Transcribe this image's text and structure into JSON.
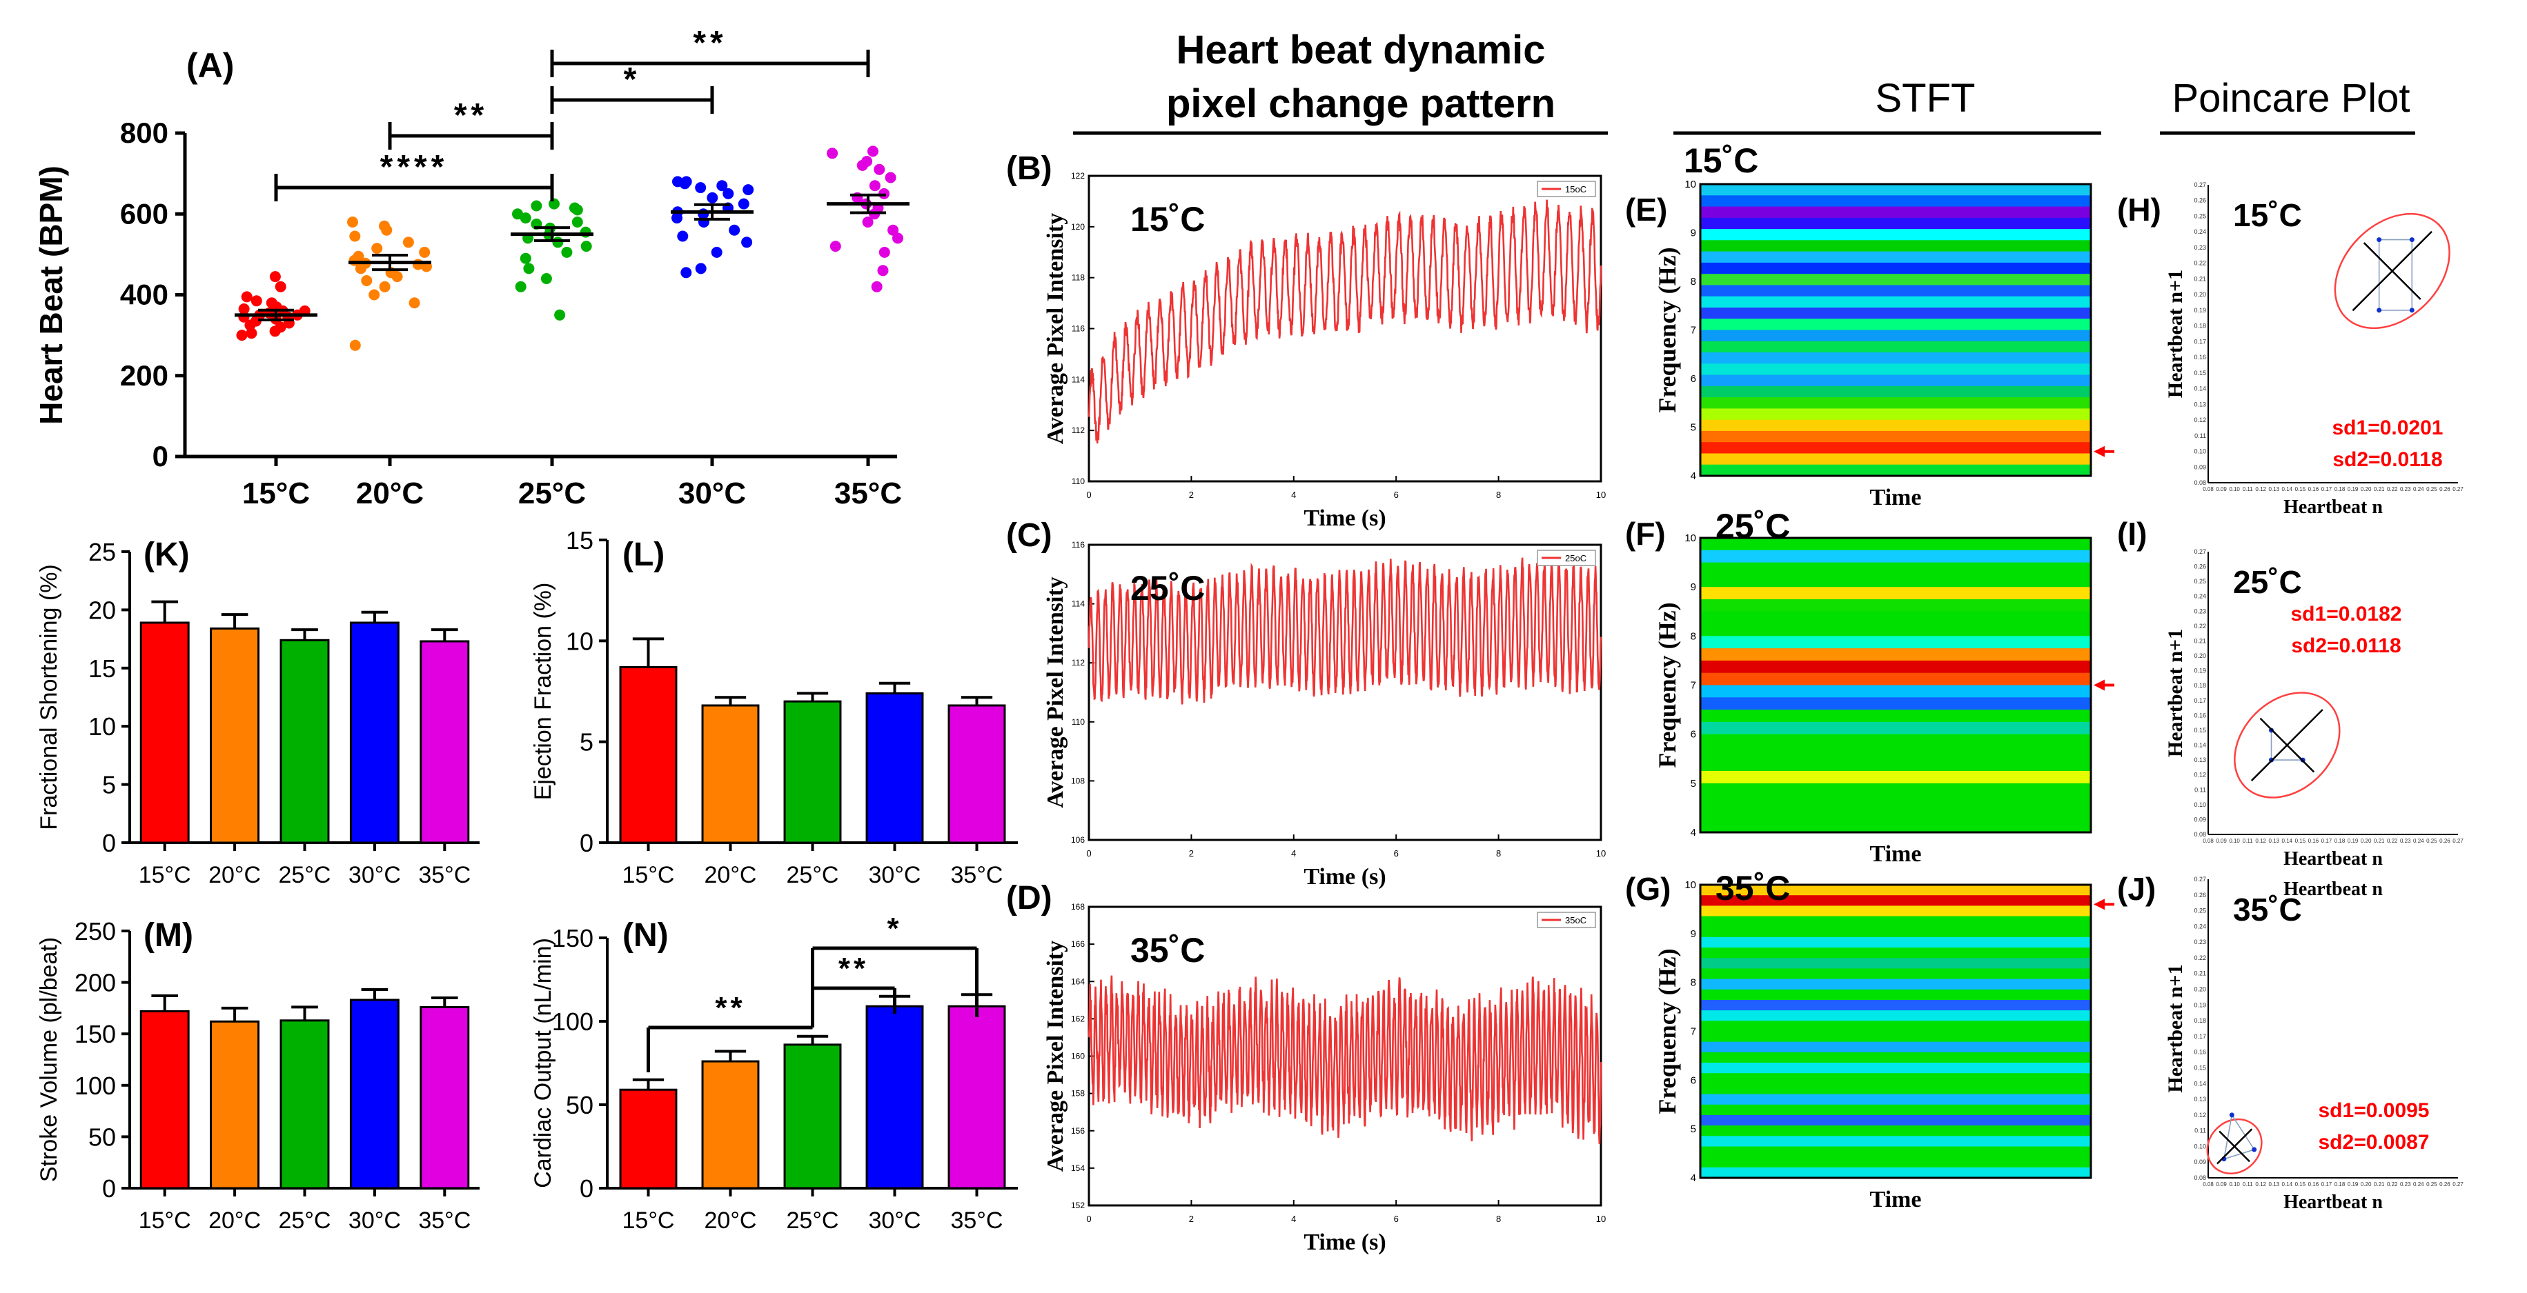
{
  "colors": {
    "red": "#ff0000",
    "orange": "#ff8000",
    "green": "#00b000",
    "blue": "#0000ff",
    "magenta": "#e000e0",
    "sig": "#ee3333",
    "annot": "#ff0000"
  },
  "headers": {
    "dynamic_line1": "Heart beat dynamic",
    "dynamic_line2": "pixel change pattern",
    "stft": "STFT",
    "poincare": "Poincare Plot"
  },
  "chart_data": [
    {
      "id": "A",
      "label": "(A)",
      "type": "scatter",
      "ylabel": "Heart Beat (BPM)",
      "ylim": [
        0,
        800
      ],
      "yticks": [
        "0",
        "200",
        "400",
        "600",
        "800"
      ],
      "categories": [
        "15°C",
        "20°C",
        "25°C",
        "30°C",
        "35°C"
      ],
      "means": [
        350,
        480,
        550,
        605,
        625
      ],
      "sem": [
        12,
        18,
        16,
        18,
        22
      ],
      "points": [
        [
          445,
          420,
          395,
          385,
          380,
          370,
          365,
          360,
          360,
          355,
          350,
          350,
          345,
          345,
          340,
          335,
          330,
          325,
          320,
          310,
          305,
          300
        ],
        [
          580,
          570,
          560,
          545,
          530,
          515,
          505,
          495,
          485,
          478,
          475,
          470,
          465,
          455,
          445,
          435,
          420,
          400,
          380,
          275
        ],
        [
          625,
          620,
          615,
          610,
          600,
          590,
          580,
          575,
          565,
          555,
          548,
          540,
          530,
          520,
          505,
          490,
          465,
          440,
          420,
          350
        ],
        [
          680,
          680,
          675,
          670,
          665,
          660,
          650,
          640,
          625,
          615,
          605,
          600,
          590,
          580,
          560,
          545,
          530,
          505,
          465,
          455
        ],
        [
          755,
          750,
          730,
          720,
          710,
          690,
          670,
          650,
          640,
          625,
          615,
          600,
          580,
          560,
          540,
          520,
          505,
          460,
          420
        ]
      ],
      "significance": [
        {
          "a": 0,
          "b": 2,
          "label": "****"
        },
        {
          "a": 1,
          "b": 2,
          "label": "**"
        },
        {
          "a": 2,
          "b": 3,
          "label": "*"
        },
        {
          "a": 2,
          "b": 4,
          "label": "**"
        }
      ]
    },
    {
      "id": "K",
      "label": "(K)",
      "type": "bar",
      "ylabel": "Fractional Shortening (%)",
      "ylim": [
        0,
        25
      ],
      "yticks": [
        "0",
        "5",
        "10",
        "15",
        "20",
        "25"
      ],
      "categories": [
        "15°C",
        "20°C",
        "25°C",
        "30°C",
        "35°C"
      ],
      "values": [
        18.9,
        18.4,
        17.4,
        18.9,
        17.3
      ],
      "errors": [
        1.8,
        1.2,
        0.9,
        0.9,
        1.0
      ]
    },
    {
      "id": "L",
      "label": "(L)",
      "type": "bar",
      "ylabel": "Ejection Fraction (%)",
      "ylim": [
        0,
        15
      ],
      "yticks": [
        "0",
        "5",
        "10",
        "15"
      ],
      "categories": [
        "15°C",
        "20°C",
        "25°C",
        "30°C",
        "35°C"
      ],
      "values": [
        8.7,
        6.8,
        7.0,
        7.4,
        6.8
      ],
      "errors": [
        1.4,
        0.4,
        0.4,
        0.5,
        0.4
      ]
    },
    {
      "id": "M",
      "label": "(M)",
      "type": "bar",
      "ylabel": "Stroke Volume (pl/beat)",
      "ylim": [
        0,
        250
      ],
      "yticks": [
        "0",
        "50",
        "100",
        "150",
        "200",
        "250"
      ],
      "categories": [
        "15°C",
        "20°C",
        "25°C",
        "30°C",
        "35°C"
      ],
      "values": [
        172,
        162,
        163,
        183,
        176
      ],
      "errors": [
        15,
        13,
        13,
        10,
        9
      ]
    },
    {
      "id": "N",
      "label": "(N)",
      "type": "bar",
      "ylabel": "Cardiac Output (nL/min)",
      "ylim": [
        0,
        150
      ],
      "yticks": [
        "0",
        "50",
        "100",
        "150"
      ],
      "categories": [
        "15°C",
        "20°C",
        "25°C",
        "30°C",
        "35°C"
      ],
      "values": [
        59,
        76,
        86,
        109,
        109
      ],
      "errors": [
        6,
        6,
        5,
        6,
        7
      ],
      "significance": [
        {
          "a": 0,
          "b": 2,
          "label": "**"
        },
        {
          "a": 2,
          "b": 3,
          "label": "**"
        },
        {
          "a": 2,
          "b": 4,
          "label": "*"
        }
      ]
    },
    {
      "id": "B",
      "label": "(B)",
      "type": "line",
      "temp": "15˚C",
      "legend": "15oC",
      "xlabel": "Time (s)",
      "ylabel": "Average Pixel Intensity",
      "xlim": [
        0,
        10
      ],
      "xticks": [
        "0",
        "2",
        "4",
        "6",
        "8",
        "10"
      ],
      "ylim": [
        110,
        122
      ],
      "yticks": [
        "110",
        "112",
        "114",
        "116",
        "118",
        "120",
        "122"
      ],
      "series": {
        "freq": 4.5,
        "base_start": 112.5,
        "base_end": 118.5,
        "tau": 2.0,
        "amp_start": 1.5,
        "amp_end": 2.2,
        "noise": 0.35
      }
    },
    {
      "id": "C",
      "label": "(C)",
      "type": "line",
      "temp": "25˚C",
      "legend": "25oC",
      "xlabel": "Time (s)",
      "ylabel": "Average Pixel Intensity",
      "xlim": [
        0,
        10
      ],
      "xticks": [
        "0",
        "2",
        "4",
        "6",
        "8",
        "10"
      ],
      "ylim": [
        106,
        116
      ],
      "yticks": [
        "106",
        "108",
        "110",
        "112",
        "114",
        "116"
      ],
      "series": {
        "freq": 7.0,
        "base_start": 112.4,
        "base_end": 113.2,
        "tau": 2.0,
        "amp_start": 1.8,
        "amp_end": 2.0,
        "noise": 0.3
      }
    },
    {
      "id": "D",
      "label": "(D)",
      "type": "line",
      "temp": "35˚C",
      "legend": "35oC",
      "xlabel": "Time (s)",
      "ylabel": "Average Pixel Intensity",
      "xlim": [
        0,
        10
      ],
      "xticks": [
        "0",
        "2",
        "4",
        "6",
        "8",
        "10"
      ],
      "ylim": [
        152,
        168
      ],
      "yticks": [
        "152",
        "154",
        "156",
        "158",
        "160",
        "162",
        "164",
        "166",
        "168"
      ],
      "series": {
        "freq": 9.6,
        "base_start": 160.5,
        "base_end": 159.8,
        "tau": 3.0,
        "amp_start": 2.6,
        "amp_end": 3.3,
        "noise": 0.9
      }
    },
    {
      "id": "E",
      "label": "(E)",
      "type": "heatmap",
      "temp": "15˚C",
      "xlabel": "Time",
      "ylabel": "Frequency (Hz)",
      "ylim": [
        4,
        10
      ],
      "yticks": [
        "4",
        "5",
        "6",
        "7",
        "8",
        "9",
        "10"
      ],
      "peak_hz": 4.5,
      "bands": [
        "#11c9f0",
        "#0060ff",
        "#7a00e0",
        "#2b10ff",
        "#00ffff",
        "#00d000",
        "#13b8ff",
        "#0030ff",
        "#30e030",
        "#1060ff",
        "#00e7e7",
        "#2040ff",
        "#00ff7f",
        "#0c9af7",
        "#00e050",
        "#10b0ff",
        "#00e5d5",
        "#10a0ff",
        "#00cc66",
        "#28e000",
        "#aaff00",
        "#ffd000",
        "#ff7000",
        "#ff2000",
        "#ffcc00",
        "#00e030"
      ]
    },
    {
      "id": "F",
      "label": "(F)",
      "type": "heatmap",
      "temp": "25˚C",
      "xlabel": "Time",
      "ylabel": "Frequency (Hz)",
      "ylim": [
        4,
        10
      ],
      "yticks": [
        "4",
        "5",
        "6",
        "7",
        "8",
        "9",
        "10"
      ],
      "peak_hz": 7.0,
      "bands": [
        "#00e000",
        "#11ccff",
        "#00e000",
        "#00e000",
        "#ffe000",
        "#10e000",
        "#00e000",
        "#00e000",
        "#00ffcc",
        "#ff9000",
        "#e00000",
        "#ff5000",
        "#00c0ff",
        "#1060ff",
        "#00e000",
        "#00d8a0",
        "#00e000",
        "#00e000",
        "#00e000",
        "#e6ff00",
        "#00e000",
        "#00e000",
        "#00e000",
        "#00e000"
      ]
    },
    {
      "id": "G",
      "label": "(G)",
      "type": "heatmap",
      "temp": "35˚C",
      "xlabel": "Time",
      "ylabel": "Frequency (Hz)",
      "ylim": [
        4,
        10
      ],
      "yticks": [
        "4",
        "5",
        "6",
        "7",
        "8",
        "9",
        "10"
      ],
      "peak_hz": 9.6,
      "bands": [
        "#ffcc00",
        "#e00000",
        "#ffe000",
        "#00e000",
        "#00e000",
        "#00e8e8",
        "#00e000",
        "#00cc88",
        "#00e000",
        "#10b8ff",
        "#00e000",
        "#2060ff",
        "#00e8e8",
        "#00e000",
        "#00e000",
        "#11aaff",
        "#00e000",
        "#00e8e8",
        "#00e000",
        "#00e000",
        "#10b8ff",
        "#00e000",
        "#2060ff",
        "#00e000",
        "#00e8e8",
        "#00e000",
        "#00e000",
        "#00e8e8"
      ]
    },
    {
      "id": "H",
      "label": "(H)",
      "type": "scatter",
      "temp": "15˚C",
      "xlabel": "Heartbeat n",
      "ylabel": "Heartbeat n+1",
      "xlim": [
        0.08,
        0.27
      ],
      "ylim": [
        0.08,
        0.27
      ],
      "ticks": [
        "0.08",
        "0.09",
        "0.10",
        "0.11",
        "0.12",
        "0.13",
        "0.14",
        "0.15",
        "0.16",
        "0.17",
        "0.18",
        "0.19",
        "0.20",
        "0.21",
        "0.22",
        "0.23",
        "0.24",
        "0.25",
        "0.26",
        "0.27"
      ],
      "center": [
        0.22,
        0.215
      ],
      "sd1": "sd1=0.0201",
      "sd2": "sd2=0.0118",
      "ellipse": {
        "rx": 0.05,
        "ry": 0.03
      },
      "points": [
        [
          0.21,
          0.19
        ],
        [
          0.21,
          0.235
        ],
        [
          0.235,
          0.235
        ],
        [
          0.235,
          0.19
        ]
      ]
    },
    {
      "id": "I",
      "label": "(I)",
      "type": "scatter",
      "temp": "25˚C",
      "xlabel": "Heartbeat n",
      "ylabel": "Heartbeat n+1",
      "xlim": [
        0.08,
        0.27
      ],
      "ylim": [
        0.08,
        0.27
      ],
      "ticks": [
        "0.08",
        "0.09",
        "0.10",
        "0.11",
        "0.12",
        "0.13",
        "0.14",
        "0.15",
        "0.16",
        "0.17",
        "0.18",
        "0.19",
        "0.20",
        "0.21",
        "0.22",
        "0.23",
        "0.24",
        "0.25",
        "0.26",
        "0.27"
      ],
      "center": [
        0.14,
        0.14
      ],
      "sd1": "sd1=0.0182",
      "sd2": "sd2=0.0118",
      "ellipse": {
        "rx": 0.045,
        "ry": 0.03
      },
      "points": [
        [
          0.128,
          0.15
        ],
        [
          0.128,
          0.13
        ],
        [
          0.152,
          0.13
        ]
      ]
    },
    {
      "id": "J",
      "label": "(J)",
      "type": "scatter",
      "temp": "35˚C",
      "xlabel": "Heartbeat n",
      "ylabel": "Heartbeat n+1",
      "xlim": [
        0.08,
        0.27
      ],
      "ylim": [
        0.08,
        0.27
      ],
      "ticks": [
        "0.08",
        "0.09",
        "0.10",
        "0.11",
        "0.12",
        "0.13",
        "0.14",
        "0.15",
        "0.16",
        "0.17",
        "0.18",
        "0.19",
        "0.20",
        "0.21",
        "0.22",
        "0.23",
        "0.24",
        "0.25",
        "0.26",
        "0.27"
      ],
      "center": [
        0.1,
        0.1
      ],
      "sd1": "sd1=0.0095",
      "sd2": "sd2=0.0087",
      "ellipse": {
        "rx": 0.022,
        "ry": 0.016
      },
      "points": [
        [
          0.098,
          0.12
        ],
        [
          0.115,
          0.098
        ],
        [
          0.092,
          0.092
        ]
      ]
    }
  ],
  "extra_labels": {
    "I_duplicate_xlabel": "Heartbeat n"
  }
}
